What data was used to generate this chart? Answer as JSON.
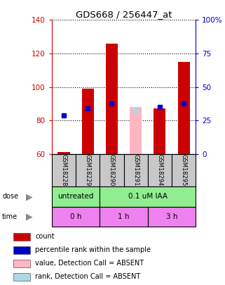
{
  "title": "GDS668 / 256447_at",
  "samples": [
    "GSM18228",
    "GSM18229",
    "GSM18290",
    "GSM18291",
    "GSM18294",
    "GSM18295"
  ],
  "red_bar_bottom": [
    60,
    60,
    60,
    60,
    60,
    60
  ],
  "red_bar_top": [
    61,
    99,
    126,
    60,
    87,
    115
  ],
  "blue_marker_y": [
    83,
    87,
    90,
    null,
    88,
    90
  ],
  "pink_bar_bottom": [
    60,
    null,
    null,
    60,
    null,
    null
  ],
  "pink_bar_top": [
    null,
    null,
    null,
    88,
    null,
    null
  ],
  "light_blue_marker_y": [
    null,
    null,
    null,
    86,
    null,
    null
  ],
  "ylim_left": [
    60,
    140
  ],
  "ylim_right": [
    0,
    100
  ],
  "yticks_left": [
    60,
    80,
    100,
    120,
    140
  ],
  "yticks_right": [
    0,
    25,
    50,
    75,
    100
  ],
  "ytick_labels_right": [
    "0",
    "25",
    "50",
    "75",
    "100%"
  ],
  "legend_items": [
    {
      "color": "#CC0000",
      "label": "count"
    },
    {
      "color": "#0000CC",
      "label": "percentile rank within the sample"
    },
    {
      "color": "#FFB6C1",
      "label": "value, Detection Call = ABSENT"
    },
    {
      "color": "#ADD8E6",
      "label": "rank, Detection Call = ABSENT"
    }
  ],
  "sample_bg_color": "#C8C8C8",
  "red_color": "#CC0000",
  "blue_color": "#0000CC",
  "pink_color": "#FFB6C1",
  "light_blue_color": "#ADD8E6",
  "green_color": "#90EE90",
  "violet_color": "#EE82EE",
  "dose_groups": [
    {
      "label": "untreated",
      "start": 0,
      "end": 2
    },
    {
      "label": "0.1 uM IAA",
      "start": 2,
      "end": 6
    }
  ],
  "time_groups": [
    {
      "label": "0 h",
      "start": 0,
      "end": 2
    },
    {
      "label": "1 h",
      "start": 2,
      "end": 4
    },
    {
      "label": "3 h",
      "start": 4,
      "end": 6
    }
  ]
}
